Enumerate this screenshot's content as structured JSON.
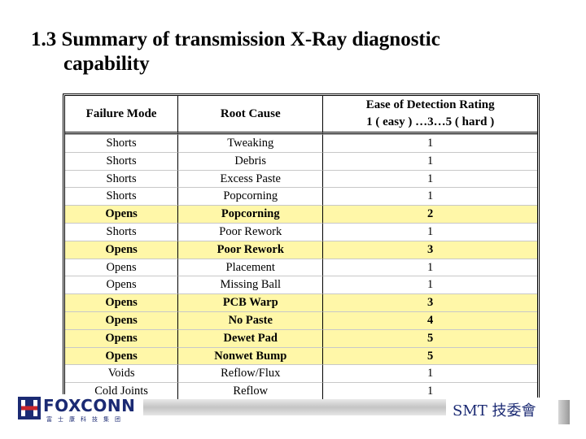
{
  "title": {
    "line1": "1.3 Summary of transmission X-Ray diagnostic",
    "line2": "capability"
  },
  "table": {
    "headers": {
      "col1": "Failure Mode",
      "col2": "Root Cause",
      "col3_line1": "Ease of Detection Rating",
      "col3_line2": "1 ( easy ) …3…5 ( hard )"
    },
    "rows": [
      {
        "mode": "Shorts",
        "cause": "Tweaking",
        "rating": "1",
        "highlight": false
      },
      {
        "mode": "Shorts",
        "cause": "Debris",
        "rating": "1",
        "highlight": false
      },
      {
        "mode": "Shorts",
        "cause": "Excess Paste",
        "rating": "1",
        "highlight": false
      },
      {
        "mode": "Shorts",
        "cause": "Popcorning",
        "rating": "1",
        "highlight": false
      },
      {
        "mode": "Opens",
        "cause": "Popcorning",
        "rating": "2",
        "highlight": true
      },
      {
        "mode": "Shorts",
        "cause": "Poor Rework",
        "rating": "1",
        "highlight": false
      },
      {
        "mode": "Opens",
        "cause": "Poor Rework",
        "rating": "3",
        "highlight": true
      },
      {
        "mode": "Opens",
        "cause": "Placement",
        "rating": "1",
        "highlight": false
      },
      {
        "mode": "Opens",
        "cause": "Missing Ball",
        "rating": "1",
        "highlight": false
      },
      {
        "mode": "Opens",
        "cause": "PCB Warp",
        "rating": "3",
        "highlight": true
      },
      {
        "mode": "Opens",
        "cause": "No Paste",
        "rating": "4",
        "highlight": true
      },
      {
        "mode": "Opens",
        "cause": "Dewet Pad",
        "rating": "5",
        "highlight": true
      },
      {
        "mode": "Opens",
        "cause": "Nonwet Bump",
        "rating": "5",
        "highlight": true
      },
      {
        "mode": "Voids",
        "cause": "Reflow/Flux",
        "rating": "1",
        "highlight": false
      },
      {
        "mode": "Cold Joints",
        "cause": "Reflow",
        "rating": "1",
        "highlight": false
      }
    ]
  },
  "footer": {
    "logo_text": "FOXCONN",
    "logo_sub": "富士康科技集团",
    "smt_text": "SMT 技委會"
  },
  "colors": {
    "highlight": "#fff7a8",
    "brand": "#1b2a73",
    "logo_red": "#c8262c"
  }
}
